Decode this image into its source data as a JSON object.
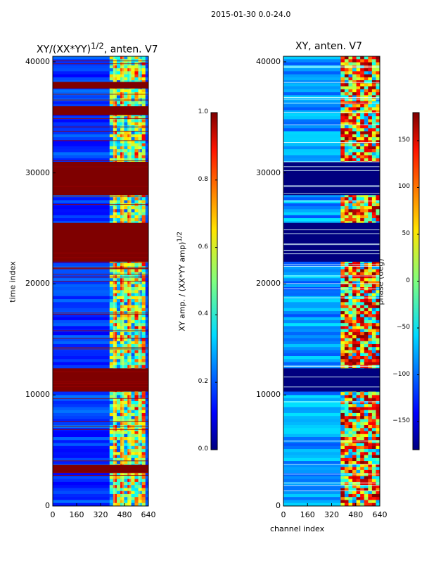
{
  "suptitle": "2015-01-30 0.0-24.0",
  "chart_data": [
    {
      "type": "heatmap",
      "title_html": "XY/(XX*YY)<sup>1/2</sup>, anten. V7",
      "title": "XY/(XX*YY)^1/2, anten. V7",
      "xlabel": "",
      "ylabel": "time index",
      "xlim": [
        0,
        640
      ],
      "ylim": [
        0,
        40500
      ],
      "xticks": [
        "0",
        "160",
        "320",
        "480",
        "640"
      ],
      "yticks": [
        "0",
        "10000",
        "20000",
        "30000",
        "40000"
      ],
      "colorbar": {
        "label": "XY amp. / (XX*YY amp)^1/2",
        "range": [
          0.0,
          1.0
        ],
        "ticks": [
          "0.0",
          "0.2",
          "0.4",
          "0.6",
          "0.8",
          "1.0"
        ]
      },
      "saturated_time_bands": [
        [
          3000,
          3700
        ],
        [
          10300,
          12400
        ],
        [
          22000,
          25500
        ],
        [
          28000,
          31000
        ],
        [
          35200,
          36000
        ],
        [
          37600,
          38200
        ]
      ],
      "active_channel_band": [
        380,
        620
      ]
    },
    {
      "type": "heatmap",
      "title": "XY, anten. V7",
      "xlabel": "channel index",
      "ylabel": "",
      "xlim": [
        0,
        640
      ],
      "ylim": [
        0,
        40500
      ],
      "xticks": [
        "0",
        "160",
        "320",
        "480",
        "640"
      ],
      "yticks": [
        "0",
        "10000",
        "20000",
        "30000",
        "40000"
      ],
      "colorbar": {
        "label": "phase (deg)",
        "range": [
          -180,
          180
        ],
        "ticks": [
          "150",
          "100",
          "50",
          "0",
          "−50",
          "−100",
          "−150"
        ]
      },
      "flat_time_bands": [
        [
          10300,
          12400
        ],
        [
          22000,
          25500
        ],
        [
          28000,
          31000
        ]
      ],
      "active_channel_band": [
        380,
        640
      ]
    }
  ]
}
